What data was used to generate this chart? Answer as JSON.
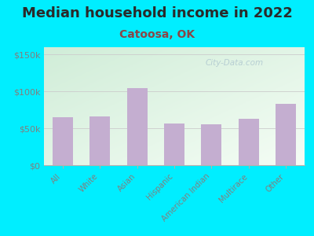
{
  "title": "Median household income in 2022",
  "subtitle": "Catoosa, OK",
  "categories": [
    "All",
    "White",
    "Asian",
    "Hispanic",
    "American Indian",
    "Multirace",
    "Other"
  ],
  "values": [
    65000,
    66000,
    105000,
    57000,
    56000,
    63000,
    83000
  ],
  "bar_color": "#c4aed0",
  "background_outer": "#00eeff",
  "background_inner_topleft": "#d0edd8",
  "background_inner_bottomright": "#f5fdf5",
  "title_color": "#2a2a2a",
  "subtitle_color": "#8b4545",
  "tick_label_color": "#808080",
  "ylim": [
    0,
    160000
  ],
  "yticks": [
    0,
    50000,
    100000,
    150000
  ],
  "ytick_labels": [
    "$0",
    "$50k",
    "$100k",
    "$150k"
  ],
  "watermark": "City-Data.com",
  "title_fontsize": 13,
  "subtitle_fontsize": 10,
  "tick_fontsize": 8
}
